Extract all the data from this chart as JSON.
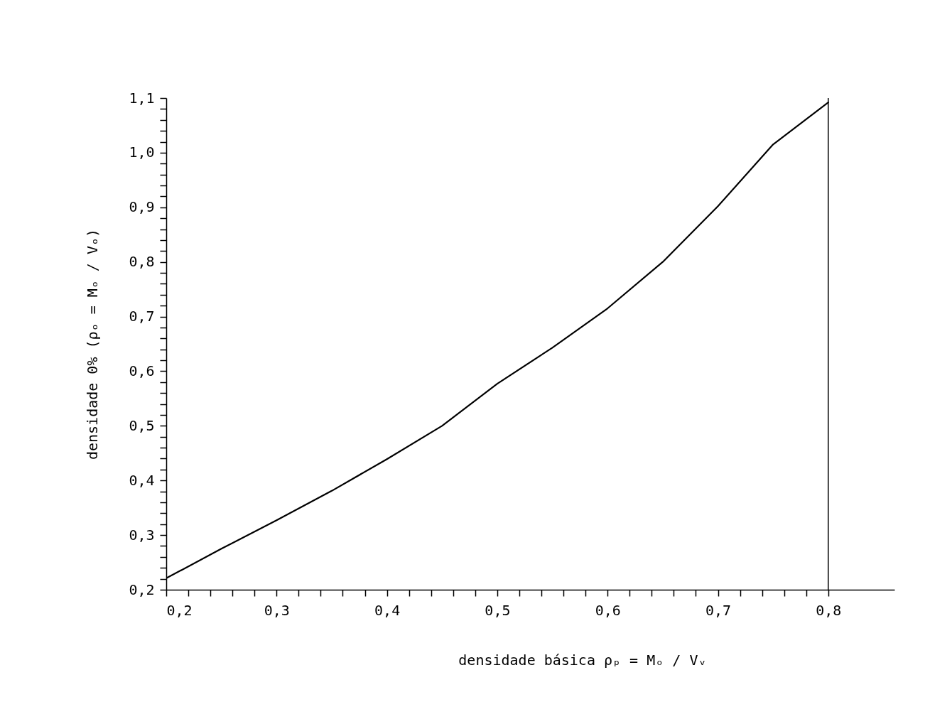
{
  "chart_data": {
    "type": "line",
    "xlabel": "densidade básica ρₚ = Mₒ / Vᵥ",
    "ylabel": "densidade 0% (ρₒ = Mₒ / Vₒ)",
    "x": [
      0.2,
      0.25,
      0.3,
      0.35,
      0.4,
      0.45,
      0.5,
      0.55,
      0.6,
      0.65,
      0.7,
      0.75,
      0.8
    ],
    "series": [
      {
        "color": "#000000",
        "values": [
          0.221,
          0.275,
          0.327,
          0.381,
          0.439,
          0.5,
          0.577,
          0.643,
          0.715,
          0.8,
          0.902,
          1.015,
          1.092
        ]
      }
    ],
    "xlim": [
      0.2,
      0.86
    ],
    "ylim": [
      0.2,
      1.1
    ],
    "xticks": [
      {
        "value": 0.2,
        "label": "0,2"
      },
      {
        "value": 0.22,
        "label": null
      },
      {
        "value": 0.24,
        "label": null
      },
      {
        "value": 0.26,
        "label": null
      },
      {
        "value": 0.28,
        "label": null
      },
      {
        "value": 0.3,
        "label": "0,3"
      },
      {
        "value": 0.32,
        "label": null
      },
      {
        "value": 0.34,
        "label": null
      },
      {
        "value": 0.36,
        "label": null
      },
      {
        "value": 0.38,
        "label": null
      },
      {
        "value": 0.4,
        "label": "0,4"
      },
      {
        "value": 0.42,
        "label": null
      },
      {
        "value": 0.44,
        "label": null
      },
      {
        "value": 0.46,
        "label": null
      },
      {
        "value": 0.48,
        "label": null
      },
      {
        "value": 0.5,
        "label": "0,5"
      },
      {
        "value": 0.52,
        "label": null
      },
      {
        "value": 0.54,
        "label": null
      },
      {
        "value": 0.56,
        "label": null
      },
      {
        "value": 0.58,
        "label": null
      },
      {
        "value": 0.6,
        "label": "0,6"
      },
      {
        "value": 0.62,
        "label": null
      },
      {
        "value": 0.64,
        "label": null
      },
      {
        "value": 0.66,
        "label": null
      },
      {
        "value": 0.68,
        "label": null
      },
      {
        "value": 0.7,
        "label": "0,7"
      },
      {
        "value": 0.72,
        "label": null
      },
      {
        "value": 0.74,
        "label": null
      },
      {
        "value": 0.76,
        "label": null
      },
      {
        "value": 0.78,
        "label": null
      },
      {
        "value": 0.8,
        "label": "0,8"
      }
    ],
    "yticks": [
      {
        "value": 0.2,
        "label": "0,2"
      },
      {
        "value": 0.22,
        "label": null
      },
      {
        "value": 0.24,
        "label": null
      },
      {
        "value": 0.26,
        "label": null
      },
      {
        "value": 0.28,
        "label": null
      },
      {
        "value": 0.3,
        "label": "0,3"
      },
      {
        "value": 0.32,
        "label": null
      },
      {
        "value": 0.34,
        "label": null
      },
      {
        "value": 0.36,
        "label": null
      },
      {
        "value": 0.38,
        "label": null
      },
      {
        "value": 0.4,
        "label": "0,4"
      },
      {
        "value": 0.42,
        "label": null
      },
      {
        "value": 0.44,
        "label": null
      },
      {
        "value": 0.46,
        "label": null
      },
      {
        "value": 0.48,
        "label": null
      },
      {
        "value": 0.5,
        "label": "0,5"
      },
      {
        "value": 0.52,
        "label": null
      },
      {
        "value": 0.54,
        "label": null
      },
      {
        "value": 0.56,
        "label": null
      },
      {
        "value": 0.58,
        "label": null
      },
      {
        "value": 0.6,
        "label": "0,6"
      },
      {
        "value": 0.62,
        "label": null
      },
      {
        "value": 0.64,
        "label": null
      },
      {
        "value": 0.66,
        "label": null
      },
      {
        "value": 0.68,
        "label": null
      },
      {
        "value": 0.7,
        "label": "0,7"
      },
      {
        "value": 0.72,
        "label": null
      },
      {
        "value": 0.74,
        "label": null
      },
      {
        "value": 0.76,
        "label": null
      },
      {
        "value": 0.78,
        "label": null
      },
      {
        "value": 0.8,
        "label": "0,8"
      },
      {
        "value": 0.82,
        "label": null
      },
      {
        "value": 0.84,
        "label": null
      },
      {
        "value": 0.86,
        "label": null
      },
      {
        "value": 0.88,
        "label": null
      },
      {
        "value": 0.9,
        "label": "0,9"
      },
      {
        "value": 0.92,
        "label": null
      },
      {
        "value": 0.94,
        "label": null
      },
      {
        "value": 0.96,
        "label": null
      },
      {
        "value": 0.98,
        "label": null
      },
      {
        "value": 1.0,
        "label": "1,0"
      },
      {
        "value": 1.02,
        "label": null
      },
      {
        "value": 1.04,
        "label": null
      },
      {
        "value": 1.06,
        "label": null
      },
      {
        "value": 1.08,
        "label": null
      },
      {
        "value": 1.1,
        "label": "1,1"
      }
    ],
    "ref_lines": [
      {
        "axis": "x",
        "value": 0.8
      }
    ],
    "grid": false,
    "marker": "none",
    "line_style": "solid"
  }
}
